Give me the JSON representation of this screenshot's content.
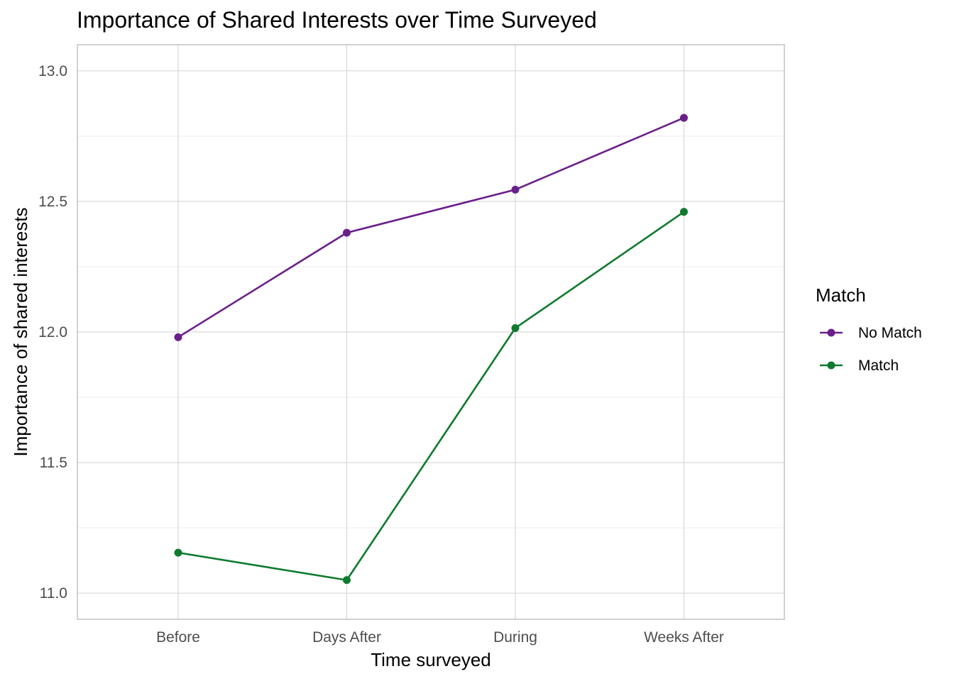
{
  "chart_data": {
    "type": "line",
    "title": "Importance of Shared Interests over Time Surveyed",
    "xlabel": "Time surveyed",
    "ylabel": "Importance of shared interests",
    "categories": [
      "Before",
      "Days After",
      "During",
      "Weeks After"
    ],
    "ylim": [
      10.9,
      13.1
    ],
    "yticks": [
      11.0,
      11.5,
      12.0,
      12.5,
      13.0
    ],
    "ytick_labels": [
      "11.0",
      "11.5",
      "12.0",
      "12.5",
      "13.0"
    ],
    "grid": true,
    "legend": {
      "title": "Match",
      "position": "right"
    },
    "series": [
      {
        "name": "No Match",
        "color": "#6a1f8a",
        "values": [
          11.98,
          12.38,
          12.545,
          12.82
        ]
      },
      {
        "name": "Match",
        "color": "#0f7a2e",
        "values": [
          11.155,
          11.05,
          12.015,
          12.46
        ]
      }
    ]
  }
}
